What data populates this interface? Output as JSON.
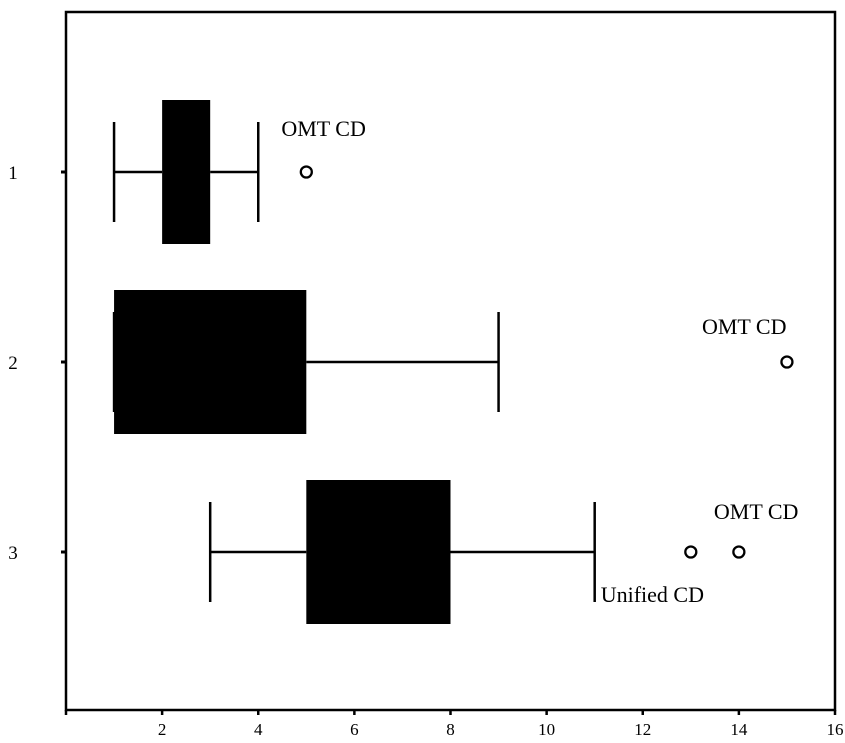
{
  "chart_data": {
    "type": "boxplot",
    "orientation": "horizontal",
    "title": "",
    "xlabel": "",
    "ylabel": "",
    "xlim": [
      0,
      16
    ],
    "xticks": [
      0,
      2,
      4,
      6,
      8,
      10,
      12,
      14,
      16
    ],
    "xtick_labels": [
      "",
      "2",
      "4",
      "6",
      "8",
      "10",
      "12",
      "14",
      "16"
    ],
    "grid": false,
    "legend": "none",
    "categories": [
      "1",
      "2",
      "3"
    ],
    "boxes": [
      {
        "category": "1",
        "whisker_low": 1,
        "q1": 2,
        "median": 3,
        "q3": 3,
        "whisker_high": 4,
        "outliers": [
          5
        ],
        "annotations": [
          "OMT CD"
        ]
      },
      {
        "category": "2",
        "whisker_low": 1,
        "q1": 1,
        "median": 5,
        "q3": 5,
        "whisker_high": 9,
        "outliers": [
          15
        ],
        "annotations": [
          "OMT CD"
        ]
      },
      {
        "category": "3",
        "whisker_low": 3,
        "q1": 5,
        "median": 8,
        "q3": 8,
        "whisker_high": 11,
        "outliers": [
          13,
          14
        ],
        "annotations": [
          "OMT CD",
          "Unified CD"
        ]
      }
    ],
    "colors": {
      "box": "#000000",
      "whisker": "#000000",
      "frame": "#000000",
      "background": "#ffffff"
    }
  }
}
